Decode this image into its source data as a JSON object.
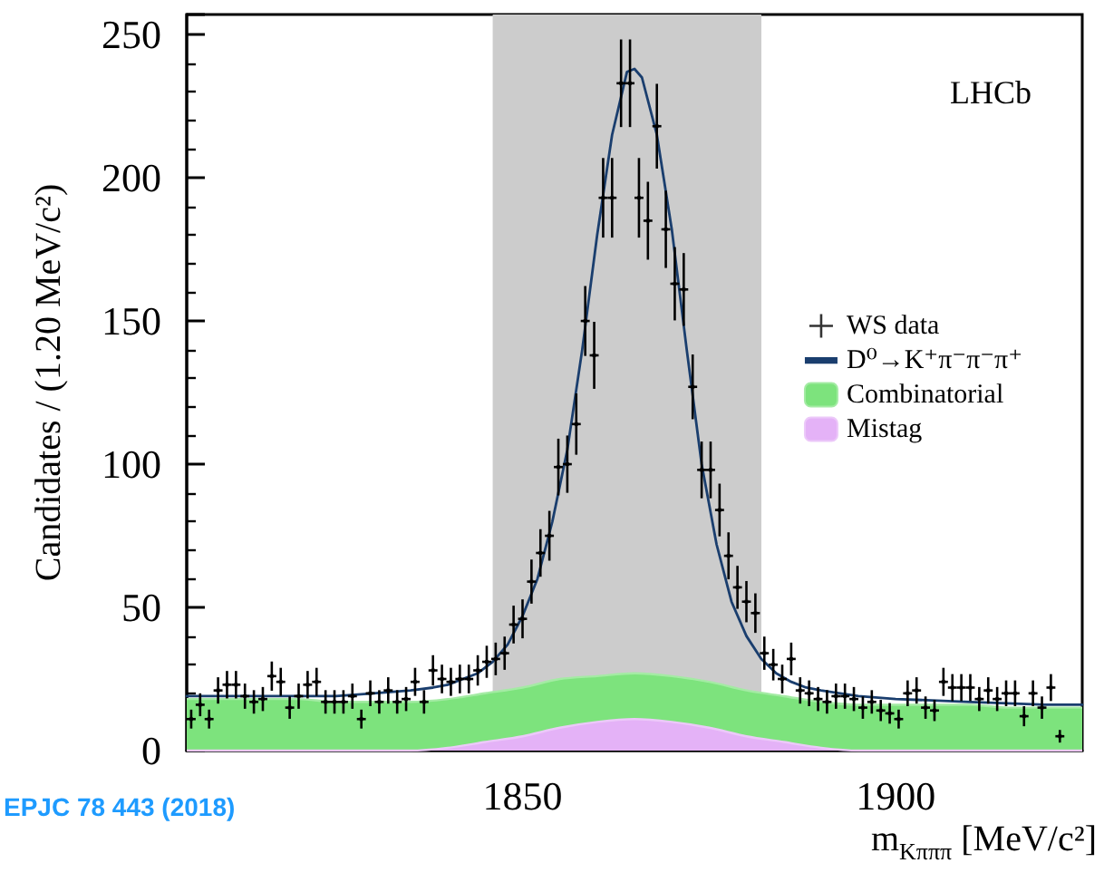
{
  "chart_data": {
    "type": "scatter",
    "xlabel": "m$_{Kπππ}$ [MeV/c²]",
    "ylabel": "Candidates / (1.20 MeV/c²)",
    "annotations": [
      "LHCb",
      "EPJC 78 443 (2018)"
    ],
    "xlim": [
      1805,
      1925
    ],
    "xticks": [
      1850,
      1900
    ],
    "ylim": [
      0,
      257
    ],
    "yticks": [
      0,
      50,
      100,
      150,
      200,
      250
    ],
    "grid": false,
    "legend": "right",
    "stacked": true,
    "bands": [
      {
        "axis": "x",
        "from": 1846,
        "to": 1882,
        "color": "#cccccc"
      }
    ],
    "series": [
      {
        "name": "Mistag",
        "type": "area",
        "color": "#e4b2f7",
        "x": [
          1805,
          1810,
          1815,
          1820,
          1825,
          1830,
          1835,
          1840,
          1845,
          1850,
          1855,
          1860,
          1865,
          1870,
          1875,
          1880,
          1885,
          1890,
          1895,
          1900,
          1905,
          1910,
          1915,
          1920,
          1925
        ],
        "values": [
          0,
          0,
          0,
          0,
          0,
          0,
          0,
          1,
          3,
          5,
          8,
          10,
          11,
          10,
          8,
          5,
          3,
          1,
          0,
          0,
          0,
          0,
          0,
          0,
          0
        ]
      },
      {
        "name": "Combinatorial",
        "type": "area",
        "color": "#7de37d",
        "x": [
          1805,
          1810,
          1815,
          1820,
          1825,
          1830,
          1835,
          1840,
          1845,
          1850,
          1855,
          1860,
          1865,
          1870,
          1875,
          1880,
          1885,
          1890,
          1895,
          1900,
          1905,
          1910,
          1915,
          1920,
          1925
        ],
        "values": [
          18,
          18,
          18,
          18,
          17,
          17,
          17,
          17,
          17,
          17,
          17,
          16,
          16,
          16,
          16,
          16,
          16,
          16,
          16,
          16,
          16,
          16,
          15,
          15,
          15
        ]
      },
      {
        "name": "WS data",
        "color": "#000000",
        "x": [
          1805.6,
          1806.8,
          1808.0,
          1809.2,
          1810.4,
          1811.6,
          1812.8,
          1814.0,
          1815.2,
          1816.4,
          1817.6,
          1818.8,
          1820.0,
          1821.2,
          1822.4,
          1823.6,
          1824.8,
          1826.0,
          1827.2,
          1828.4,
          1829.6,
          1830.8,
          1832.0,
          1833.2,
          1834.4,
          1835.6,
          1836.8,
          1838.0,
          1839.2,
          1840.4,
          1841.6,
          1842.8,
          1844.0,
          1845.2,
          1846.4,
          1847.6,
          1848.8,
          1850.0,
          1851.2,
          1852.4,
          1853.6,
          1854.8,
          1856.0,
          1857.2,
          1858.4,
          1859.6,
          1860.8,
          1862.0,
          1863.2,
          1864.4,
          1865.6,
          1866.8,
          1868.0,
          1869.2,
          1870.4,
          1871.6,
          1872.8,
          1874.0,
          1875.2,
          1876.4,
          1877.6,
          1878.8,
          1880.0,
          1881.2,
          1882.4,
          1883.6,
          1884.8,
          1886.0,
          1887.2,
          1888.4,
          1889.6,
          1890.8,
          1892.0,
          1893.2,
          1894.4,
          1895.6,
          1896.8,
          1898.0,
          1899.2,
          1900.4,
          1901.6,
          1902.8,
          1904.0,
          1905.2,
          1906.4,
          1907.6,
          1908.8,
          1910.0,
          1911.2,
          1912.4,
          1913.6,
          1914.8,
          1916.0,
          1917.2,
          1918.4,
          1919.6,
          1920.8,
          1922.0
        ],
        "values": [
          11,
          16,
          11,
          21,
          23,
          23,
          19,
          17,
          18,
          26,
          24,
          15,
          19,
          23,
          24,
          17,
          17,
          17,
          19,
          11,
          20,
          17,
          21,
          17,
          18,
          24,
          17,
          28,
          25,
          24,
          25,
          25,
          28,
          31,
          32,
          34,
          44,
          46,
          59,
          69,
          75,
          99,
          100,
          114,
          150,
          138,
          193,
          193,
          233,
          233,
          193,
          185,
          218,
          182,
          163,
          161,
          127,
          98,
          98,
          84,
          68,
          57,
          52,
          48,
          34,
          30,
          25,
          32,
          21,
          20,
          18,
          17,
          19,
          19,
          18,
          15,
          17,
          14,
          13,
          11,
          20,
          21,
          15,
          14,
          24,
          22,
          22,
          22,
          18,
          21,
          18,
          20,
          20,
          12,
          20,
          15,
          22,
          5
        ],
        "errors": [
          3.3,
          4,
          3.3,
          4.6,
          4.8,
          4.8,
          4.4,
          4.1,
          4.2,
          5.1,
          4.9,
          3.9,
          4.4,
          4.8,
          4.9,
          4.1,
          4.1,
          4.1,
          4.4,
          3.3,
          4.5,
          4.1,
          4.6,
          4.1,
          4.2,
          4.9,
          4.1,
          5.3,
          5,
          4.9,
          5,
          5,
          5.3,
          5.6,
          5.7,
          5.8,
          6.6,
          6.8,
          7.7,
          8.3,
          8.7,
          9.9,
          10,
          10.7,
          12.2,
          11.7,
          13.9,
          13.9,
          15.3,
          15.3,
          13.9,
          13.6,
          14.8,
          13.5,
          12.8,
          12.7,
          11.3,
          9.9,
          9.9,
          9.2,
          8.2,
          7.5,
          7.2,
          6.9,
          5.8,
          5.5,
          5,
          5.7,
          4.6,
          4.5,
          4.2,
          4.1,
          4.4,
          4.4,
          4.2,
          3.9,
          4.1,
          3.7,
          3.6,
          3.3,
          4.5,
          4.6,
          3.9,
          3.7,
          4.9,
          4.7,
          4.7,
          4.7,
          4.2,
          4.6,
          4.2,
          4.5,
          4.5,
          3.5,
          4.5,
          3.9,
          4.7,
          2.2
        ],
        "xerrors": [
          0.6,
          0.6,
          0.6,
          0.6,
          0.6,
          0.6,
          0.6,
          0.6,
          0.6,
          0.6,
          0.6,
          0.6,
          0.6,
          0.6,
          0.6,
          0.6,
          0.6,
          0.6,
          0.6,
          0.6,
          0.6,
          0.6,
          0.6,
          0.6,
          0.6,
          0.6,
          0.6,
          0.6,
          0.6,
          0.6,
          0.6,
          0.6,
          0.6,
          0.6,
          0.6,
          0.6,
          0.6,
          0.6,
          0.6,
          0.6,
          0.6,
          0.6,
          0.6,
          0.6,
          0.6,
          0.6,
          0.6,
          0.6,
          0.6,
          0.6,
          0.6,
          0.6,
          0.6,
          0.6,
          0.6,
          0.6,
          0.6,
          0.6,
          0.6,
          0.6,
          0.6,
          0.6,
          0.6,
          0.6,
          0.6,
          0.6,
          0.6,
          0.6,
          0.6,
          0.6,
          0.6,
          0.6,
          0.6,
          0.6,
          0.6,
          0.6,
          0.6,
          0.6,
          0.6,
          0.6,
          0.6,
          0.6,
          0.6,
          0.6,
          0.6,
          0.6,
          0.6,
          0.6,
          0.6,
          0.6,
          0.6,
          0.6,
          0.6,
          0.6,
          0.6,
          0.6,
          0.6,
          0.6
        ]
      },
      {
        "name": "D⁰→K⁺π⁻π⁻π⁺",
        "type": "line",
        "color": "#1a3e6e",
        "line_style": "solid",
        "x": [
          1805,
          1810,
          1815,
          1820,
          1825,
          1830,
          1835,
          1838,
          1840,
          1842,
          1844,
          1846,
          1848,
          1850,
          1852,
          1854,
          1856,
          1858,
          1860,
          1862,
          1864,
          1865,
          1866,
          1868,
          1870,
          1872,
          1874,
          1876,
          1878,
          1880,
          1882,
          1884,
          1886,
          1888,
          1890,
          1895,
          1900,
          1910,
          1920,
          1925
        ],
        "values": [
          19,
          19,
          19,
          19,
          19,
          20,
          21,
          22,
          23,
          25,
          27,
          31,
          37,
          47,
          60,
          80,
          105,
          140,
          180,
          215,
          237,
          238,
          235,
          215,
          182,
          140,
          100,
          72,
          52,
          40,
          32,
          27,
          24,
          22,
          21,
          19,
          18,
          17,
          16,
          16
        ]
      }
    ]
  }
}
